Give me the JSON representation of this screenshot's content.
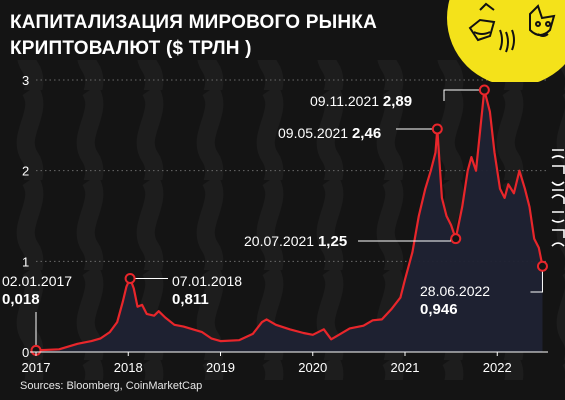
{
  "header": {
    "title_line1": "КАПИТАЛИЗАЦИЯ МИРОВОГО РЫНКА",
    "title_line2": "КРИПТОВАЛЮТ ($ ТРЛН )"
  },
  "footer": {
    "source": "Sources: Bloomberg, CoinMarketCap"
  },
  "colors": {
    "background": "#141414",
    "line": "#e8262b",
    "area": "#1f2233",
    "logo_bg": "#f4e21a",
    "annotation": "#ffffff"
  },
  "chart_data": {
    "type": "area",
    "title": "КАПИТАЛИЗАЦИЯ МИРОВОГО РЫНКА КРИПТОВАЛЮТ ($ ТРЛН )",
    "xlabel": "",
    "ylabel": "",
    "ylim": [
      0,
      3
    ],
    "yticks": [
      "0",
      "1",
      "2",
      "3"
    ],
    "xticks": [
      "2017",
      "2018",
      "2019",
      "2020",
      "2021",
      "2022"
    ],
    "grid": "horizontal dotted",
    "series": [
      {
        "values": [
          [
            2017.0,
            0.018
          ],
          [
            2017.25,
            0.03
          ],
          [
            2017.45,
            0.09
          ],
          [
            2017.6,
            0.12
          ],
          [
            2017.7,
            0.15
          ],
          [
            2017.8,
            0.22
          ],
          [
            2017.88,
            0.33
          ],
          [
            2017.94,
            0.55
          ],
          [
            2017.98,
            0.72
          ],
          [
            2018.02,
            0.811
          ],
          [
            2018.06,
            0.7
          ],
          [
            2018.1,
            0.5
          ],
          [
            2018.15,
            0.52
          ],
          [
            2018.2,
            0.42
          ],
          [
            2018.28,
            0.4
          ],
          [
            2018.33,
            0.45
          ],
          [
            2018.4,
            0.38
          ],
          [
            2018.5,
            0.3
          ],
          [
            2018.6,
            0.28
          ],
          [
            2018.7,
            0.25
          ],
          [
            2018.8,
            0.22
          ],
          [
            2018.9,
            0.15
          ],
          [
            2019.0,
            0.12
          ],
          [
            2019.2,
            0.13
          ],
          [
            2019.35,
            0.2
          ],
          [
            2019.45,
            0.33
          ],
          [
            2019.5,
            0.36
          ],
          [
            2019.6,
            0.3
          ],
          [
            2019.75,
            0.25
          ],
          [
            2019.9,
            0.21
          ],
          [
            2020.0,
            0.19
          ],
          [
            2020.12,
            0.25
          ],
          [
            2020.2,
            0.14
          ],
          [
            2020.3,
            0.2
          ],
          [
            2020.4,
            0.26
          ],
          [
            2020.55,
            0.29
          ],
          [
            2020.65,
            0.35
          ],
          [
            2020.75,
            0.36
          ],
          [
            2020.85,
            0.47
          ],
          [
            2020.95,
            0.6
          ],
          [
            2021.0,
            0.8
          ],
          [
            2021.08,
            1.1
          ],
          [
            2021.15,
            1.5
          ],
          [
            2021.22,
            1.8
          ],
          [
            2021.28,
            2.0
          ],
          [
            2021.33,
            2.2
          ],
          [
            2021.35,
            2.46
          ],
          [
            2021.4,
            1.7
          ],
          [
            2021.45,
            1.5
          ],
          [
            2021.5,
            1.4
          ],
          [
            2021.55,
            1.25
          ],
          [
            2021.62,
            1.6
          ],
          [
            2021.68,
            2.0
          ],
          [
            2021.72,
            2.15
          ],
          [
            2021.77,
            2.0
          ],
          [
            2021.8,
            2.3
          ],
          [
            2021.86,
            2.89
          ],
          [
            2021.92,
            2.65
          ],
          [
            2021.97,
            2.2
          ],
          [
            2022.03,
            1.8
          ],
          [
            2022.08,
            1.7
          ],
          [
            2022.12,
            1.85
          ],
          [
            2022.18,
            1.75
          ],
          [
            2022.24,
            2.0
          ],
          [
            2022.3,
            1.8
          ],
          [
            2022.35,
            1.6
          ],
          [
            2022.4,
            1.25
          ],
          [
            2022.45,
            1.15
          ],
          [
            2022.49,
            0.946
          ]
        ]
      }
    ],
    "annotations": [
      {
        "date": "02.01.2017",
        "value": "0,018",
        "x": 2017.0,
        "y": 0.018,
        "label_pos": "above-right"
      },
      {
        "date": "07.01.2018",
        "value": "0,811",
        "x": 2018.02,
        "y": 0.811,
        "label_pos": "right"
      },
      {
        "date": "09.05.2021",
        "value": "2,46",
        "x": 2021.35,
        "y": 2.46,
        "label_pos": "left"
      },
      {
        "date": "20.07.2021",
        "value": "1,25",
        "x": 2021.55,
        "y": 1.25,
        "label_pos": "left"
      },
      {
        "date": "09.11.2021",
        "value": "2,89",
        "x": 2021.86,
        "y": 2.89,
        "label_pos": "left"
      },
      {
        "date": "28.06.2022",
        "value": "0,946",
        "x": 2022.49,
        "y": 0.946,
        "label_pos": "below-left"
      }
    ]
  }
}
